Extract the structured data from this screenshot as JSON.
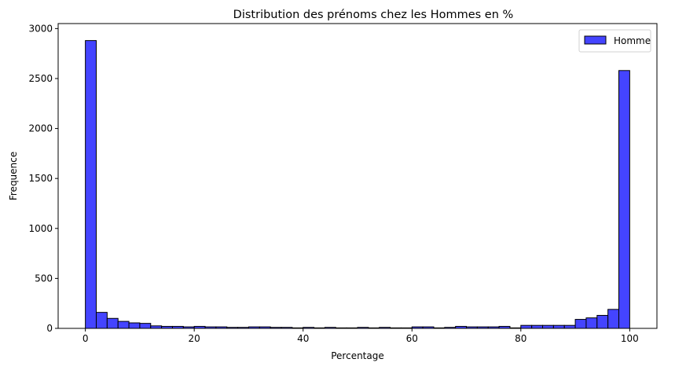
{
  "chart_data": {
    "type": "bar",
    "title": "Distribution des prénoms chez les Hommes en %",
    "xlabel": "Percentage",
    "ylabel": "Frequence",
    "xlim": [
      -5,
      105
    ],
    "ylim": [
      0,
      3050
    ],
    "xticks": [
      0,
      20,
      40,
      60,
      80,
      100
    ],
    "yticks": [
      0,
      500,
      1000,
      1500,
      2000,
      2500,
      3000
    ],
    "grid": false,
    "legend_position": "top-right",
    "bar_color": "#4444ff",
    "bar_edge_color": "#000000",
    "series": [
      {
        "name": "Homme",
        "bin_start": 0,
        "bin_width": 2,
        "values": [
          2880,
          160,
          100,
          70,
          55,
          50,
          25,
          20,
          20,
          15,
          20,
          15,
          15,
          10,
          10,
          15,
          15,
          10,
          10,
          5,
          10,
          5,
          10,
          5,
          5,
          10,
          5,
          10,
          5,
          5,
          15,
          15,
          5,
          10,
          20,
          15,
          15,
          15,
          20,
          5,
          30,
          30,
          30,
          30,
          30,
          90,
          105,
          130,
          190,
          2580
        ]
      }
    ]
  }
}
